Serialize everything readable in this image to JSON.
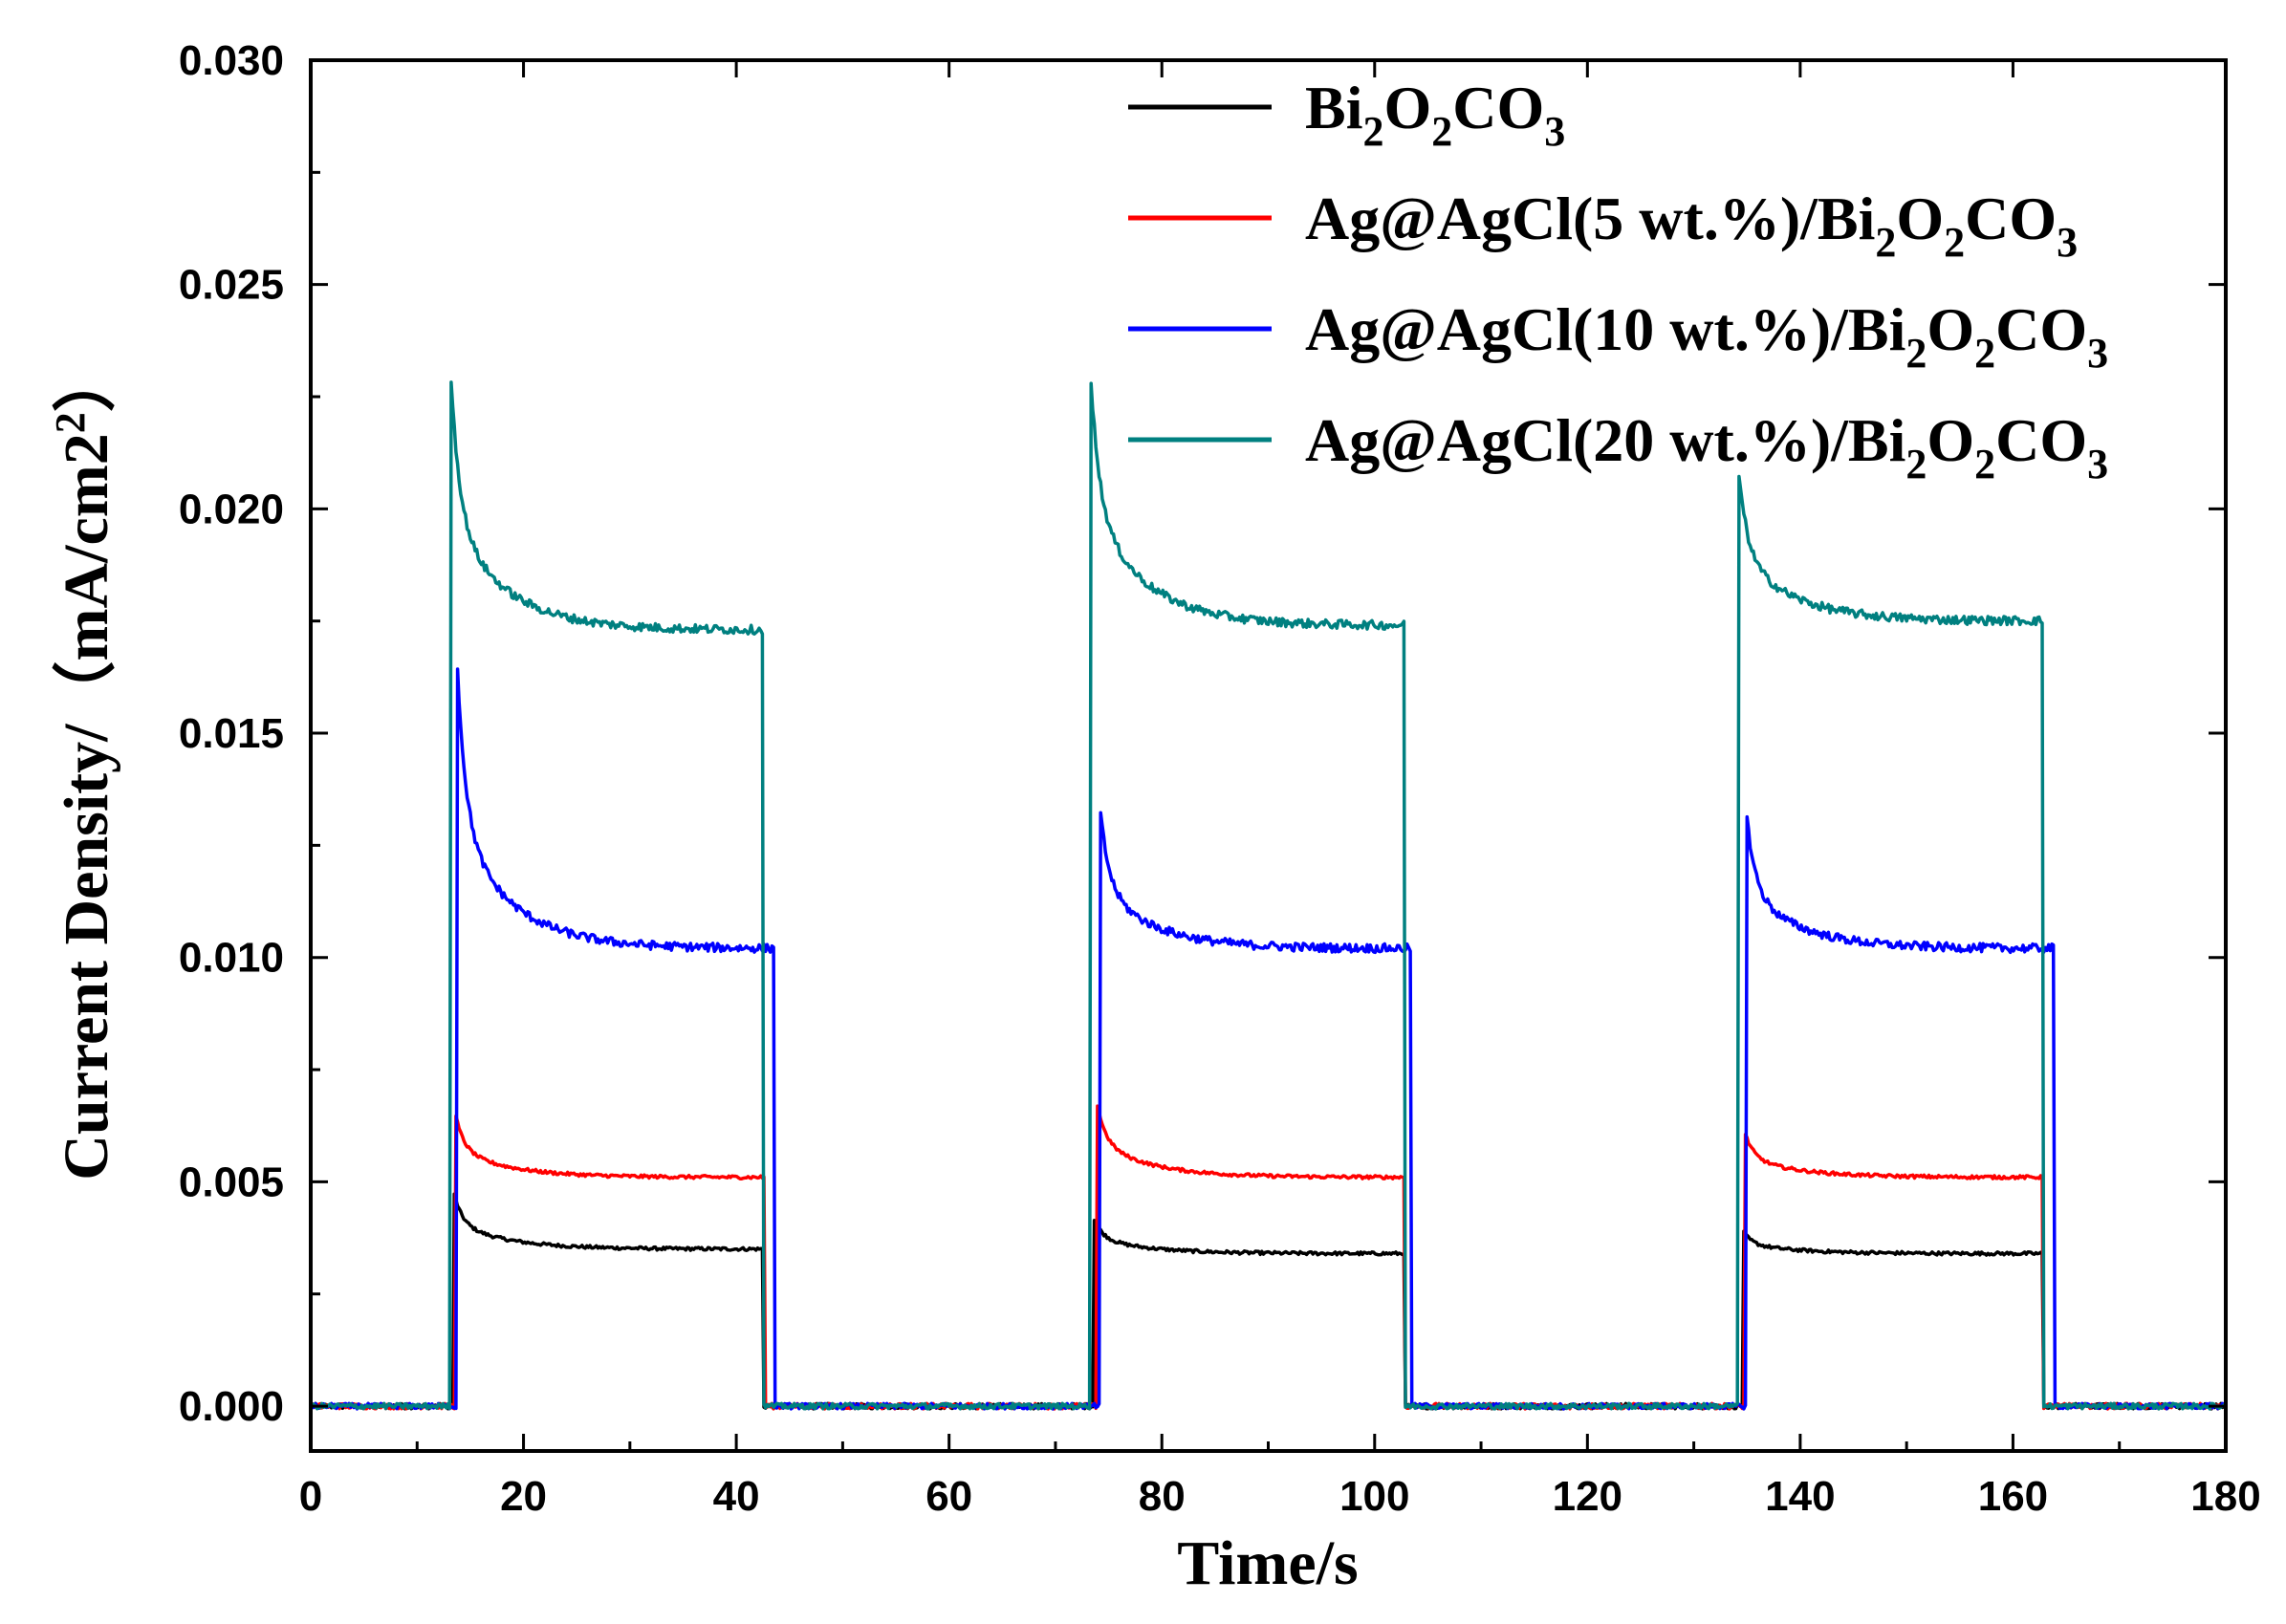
{
  "chart_data": {
    "type": "line",
    "title": "",
    "xlabel": "Time/s",
    "ylabel": "Current Density/（mA/cm2",
    "ylabel_sup": "2",
    "ylabel_tail": "）",
    "xlim": [
      0,
      180
    ],
    "ylim": [
      -0.001,
      0.03
    ],
    "x_ticks": [
      0,
      20,
      40,
      60,
      80,
      100,
      120,
      140,
      160,
      180
    ],
    "x_tick_labels": [
      "0",
      "20",
      "40",
      "60",
      "80",
      "100",
      "120",
      "140",
      "160",
      "180"
    ],
    "y_ticks": [
      0.0,
      0.005,
      0.01,
      0.015,
      0.02,
      0.025,
      0.03
    ],
    "y_tick_labels": [
      "0.000",
      "0.005",
      "0.010",
      "0.015",
      "0.020",
      "0.025",
      "0.030"
    ],
    "legend_position": "top-right",
    "light_on_intervals": [
      [
        13.2,
        42.5
      ],
      [
        73.2,
        102.8
      ],
      [
        134.2,
        162.8
      ]
    ],
    "series": [
      {
        "name": "Bi2O2CO3",
        "legend_parts": [
          [
            "Bi",
            ""
          ],
          [
            "2",
            "sub"
          ],
          [
            "O",
            ""
          ],
          [
            "2",
            "sub"
          ],
          [
            "CO",
            ""
          ],
          [
            "3",
            "sub"
          ]
        ],
        "color": "#000000",
        "on_times": [
          13.4,
          73.6,
          134.6
        ],
        "off_times": [
          42.5,
          102.8,
          162.8
        ],
        "peaks": [
          0.0048,
          0.0042,
          0.0039
        ],
        "plateaus": [
          0.0035,
          0.0034,
          0.0034
        ],
        "baseline": 0.0
      },
      {
        "name": "Ag@AgCl(5 wt.%)/Bi2O2CO3",
        "legend_parts": [
          [
            "Ag@AgCl(5 wt.%)/Bi",
            ""
          ],
          [
            "2",
            "sub"
          ],
          [
            "O",
            ""
          ],
          [
            "2",
            "sub"
          ],
          [
            "CO",
            ""
          ],
          [
            "3",
            "sub"
          ]
        ],
        "color": "#ff0000",
        "on_times": [
          13.6,
          73.8,
          134.8
        ],
        "off_times": [
          42.6,
          102.9,
          162.9
        ],
        "peaks": [
          0.0065,
          0.0069,
          0.0061
        ],
        "plateaus": [
          0.0051,
          0.0051,
          0.0051
        ],
        "baseline": 0.0
      },
      {
        "name": "Ag@AgCl(10 wt.%)/Bi2O2CO3",
        "legend_parts": [
          [
            "Ag@AgCl(10 wt.%)/Bi",
            ""
          ],
          [
            "2",
            "sub"
          ],
          [
            "O",
            ""
          ],
          [
            "2",
            "sub"
          ],
          [
            "CO",
            ""
          ],
          [
            "3",
            "sub"
          ]
        ],
        "color": "#0000ff",
        "on_times": [
          13.8,
          74.2,
          135.0
        ],
        "off_times": [
          43.5,
          103.4,
          163.9
        ],
        "peaks": [
          0.0164,
          0.0133,
          0.0131
        ],
        "plateaus": [
          0.0102,
          0.0102,
          0.0102
        ],
        "baseline": 0.0
      },
      {
        "name": "Ag@AgCl(20 wt.%)/Bi2O2CO3",
        "legend_parts": [
          [
            "Ag@AgCl(20 wt.%)/Bi",
            ""
          ],
          [
            "2",
            "sub"
          ],
          [
            "O",
            ""
          ],
          [
            "2",
            "sub"
          ],
          [
            "CO",
            ""
          ],
          [
            "3",
            "sub"
          ]
        ],
        "color": "#008080",
        "on_times": [
          13.2,
          73.2,
          134.2
        ],
        "off_times": [
          42.5,
          102.8,
          162.8
        ],
        "peaks": [
          0.0229,
          0.0235,
          0.0209
        ],
        "plateaus": [
          0.0173,
          0.0174,
          0.0175
        ],
        "baseline": 0.0
      }
    ]
  }
}
